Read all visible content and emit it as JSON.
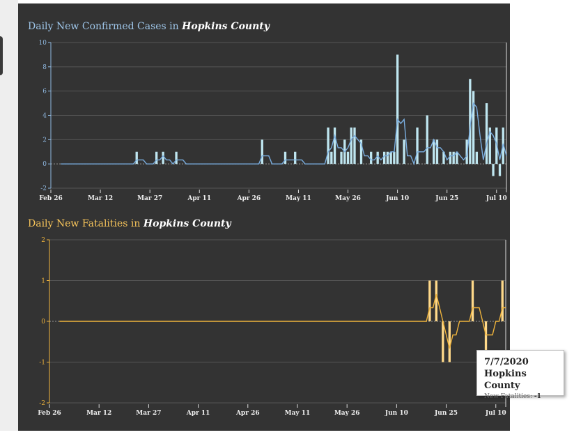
{
  "chart_data": [
    {
      "type": "bar",
      "title_prefix": "Daily New Confirmed Cases in ",
      "title_county": "Hopkins County",
      "title": "Daily New Confirmed Cases in Hopkins County",
      "color": "#bfe6f0",
      "line_color": "#7aaee0",
      "axis_color": "#8fb8e0",
      "ylim": [
        -2,
        10
      ],
      "yticks": [
        -2,
        0,
        2,
        4,
        6,
        8,
        10
      ],
      "x_start": "2020-02-26",
      "x_end": "2020-07-13",
      "x_tick_labels": [
        "Feb 26",
        "Mar 12",
        "Mar 27",
        "Apr 11",
        "Apr 26",
        "May 11",
        "May 26",
        "Jun 10",
        "Jun 25",
        "Jul 10"
      ],
      "series": [
        {
          "values": [
            {
              "date": "2020-03-23",
              "value": 1
            },
            {
              "date": "2020-03-29",
              "value": 1
            },
            {
              "date": "2020-03-31",
              "value": 1
            },
            {
              "date": "2020-04-04",
              "value": 1
            },
            {
              "date": "2020-04-30",
              "value": 2
            },
            {
              "date": "2020-05-07",
              "value": 1
            },
            {
              "date": "2020-05-10",
              "value": 1
            },
            {
              "date": "2020-05-20",
              "value": 3
            },
            {
              "date": "2020-05-21",
              "value": 1
            },
            {
              "date": "2020-05-22",
              "value": 3
            },
            {
              "date": "2020-05-24",
              "value": 1
            },
            {
              "date": "2020-05-25",
              "value": 2
            },
            {
              "date": "2020-05-26",
              "value": 1
            },
            {
              "date": "2020-05-27",
              "value": 3
            },
            {
              "date": "2020-05-28",
              "value": 3
            },
            {
              "date": "2020-05-30",
              "value": 2
            },
            {
              "date": "2020-06-02",
              "value": 1
            },
            {
              "date": "2020-06-04",
              "value": 1
            },
            {
              "date": "2020-06-06",
              "value": 1
            },
            {
              "date": "2020-06-07",
              "value": 1
            },
            {
              "date": "2020-06-08",
              "value": 1
            },
            {
              "date": "2020-06-09",
              "value": 1
            },
            {
              "date": "2020-06-10",
              "value": 9
            },
            {
              "date": "2020-06-12",
              "value": 2
            },
            {
              "date": "2020-06-16",
              "value": 3
            },
            {
              "date": "2020-06-19",
              "value": 4
            },
            {
              "date": "2020-06-21",
              "value": 2
            },
            {
              "date": "2020-06-22",
              "value": 2
            },
            {
              "date": "2020-06-24",
              "value": 1
            },
            {
              "date": "2020-06-26",
              "value": 1
            },
            {
              "date": "2020-06-27",
              "value": 1
            },
            {
              "date": "2020-06-28",
              "value": 1
            },
            {
              "date": "2020-07-01",
              "value": 2
            },
            {
              "date": "2020-07-02",
              "value": 7
            },
            {
              "date": "2020-07-03",
              "value": 6
            },
            {
              "date": "2020-07-04",
              "value": 1
            },
            {
              "date": "2020-07-07",
              "value": 5
            },
            {
              "date": "2020-07-08",
              "value": 3
            },
            {
              "date": "2020-07-09",
              "value": -1
            },
            {
              "date": "2020-07-10",
              "value": 3
            },
            {
              "date": "2020-07-11",
              "value": -1
            },
            {
              "date": "2020-07-12",
              "value": 3
            }
          ]
        }
      ],
      "rolling_average": true
    },
    {
      "type": "bar",
      "title_prefix": "Daily New Fatalities in ",
      "title_county": "Hopkins County",
      "title": "Daily New Fatalities in Hopkins County",
      "color": "#ffd98a",
      "line_color": "#f0b43c",
      "axis_color": "#f0b43c",
      "ylim": [
        -2,
        2
      ],
      "yticks": [
        -2,
        -1,
        0,
        1,
        2
      ],
      "x_start": "2020-02-26",
      "x_end": "2020-07-13",
      "x_tick_labels": [
        "Feb 26",
        "Mar 12",
        "Mar 27",
        "Apr 11",
        "Apr 26",
        "May 11",
        "May 26",
        "Jun 10",
        "Jun 25",
        "Jul 10"
      ],
      "series": [
        {
          "values": [
            {
              "date": "2020-06-20",
              "value": 1
            },
            {
              "date": "2020-06-22",
              "value": 1
            },
            {
              "date": "2020-06-24",
              "value": -1
            },
            {
              "date": "2020-06-26",
              "value": -1
            },
            {
              "date": "2020-07-03",
              "value": 1
            },
            {
              "date": "2020-07-07",
              "value": -1
            },
            {
              "date": "2020-07-12",
              "value": 1
            }
          ]
        }
      ],
      "rolling_average": true
    }
  ],
  "tooltip": {
    "date": "7/7/2020",
    "county": "Hopkins County",
    "label": "New Fatalities: ",
    "value": "-1"
  }
}
